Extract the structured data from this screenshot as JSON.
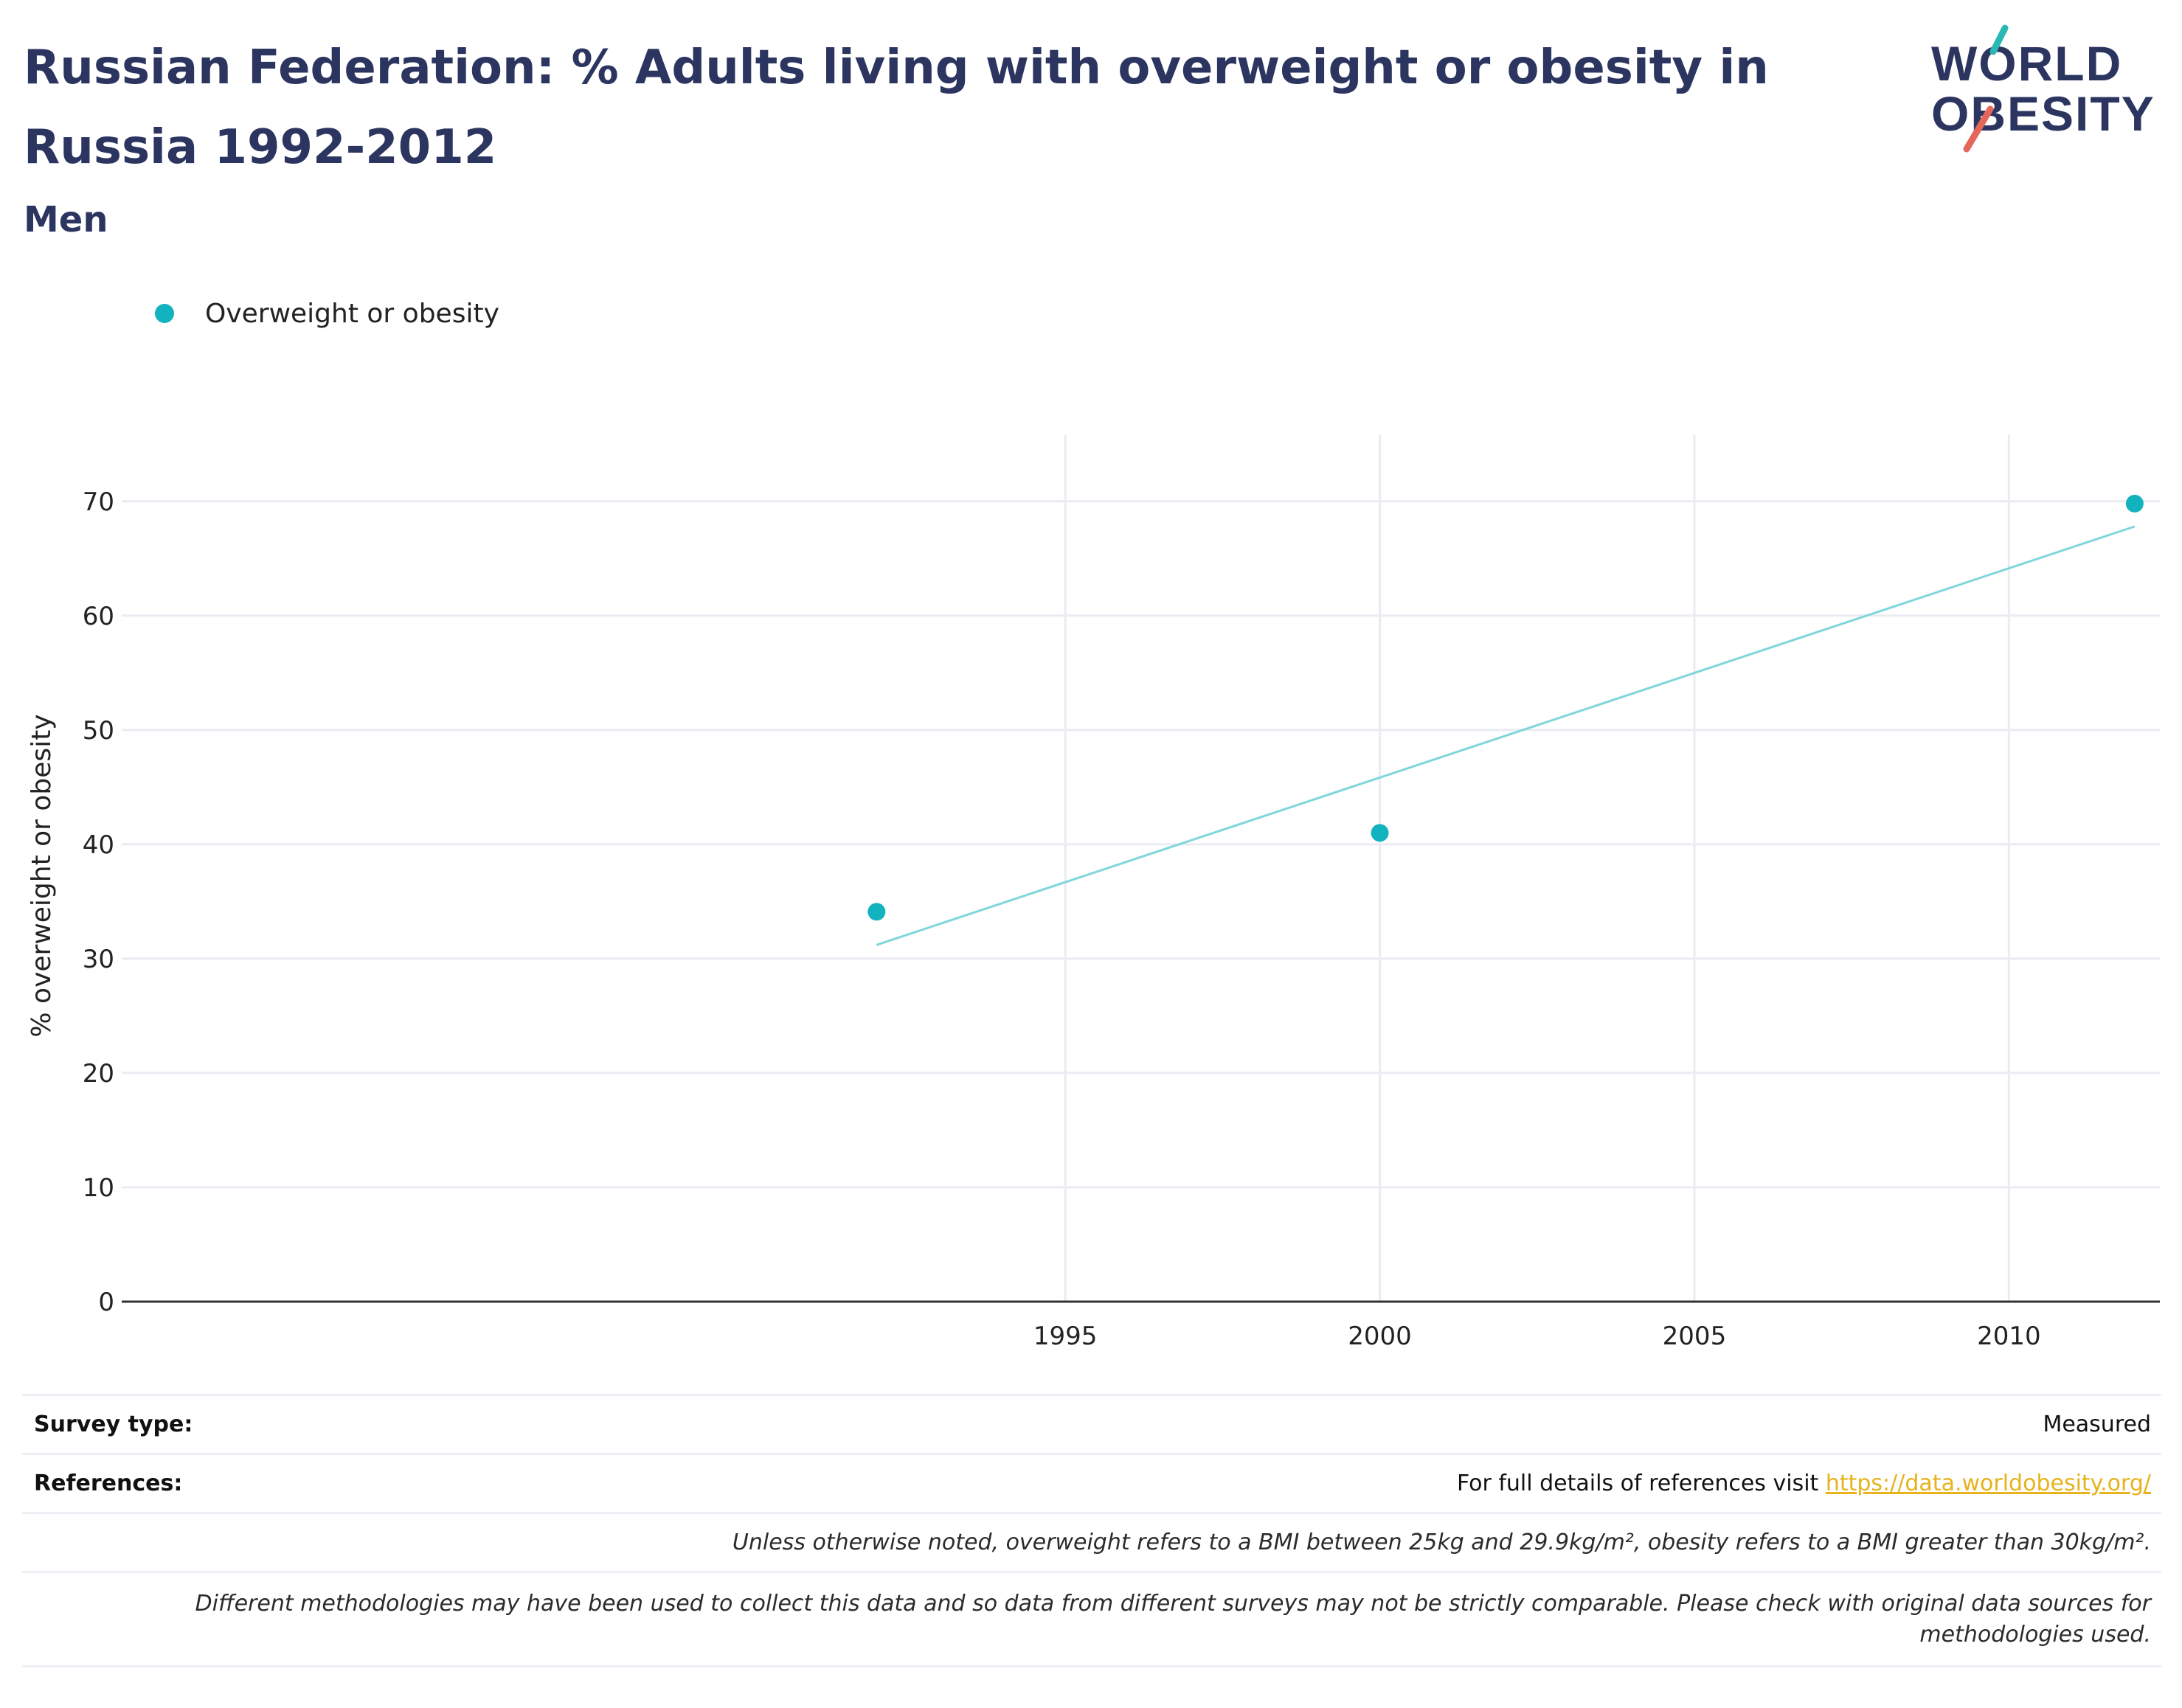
{
  "header": {
    "title": "Russian Federation: % Adults living with overweight or obesity in Russia 1992-2012",
    "subtitle": "Men"
  },
  "logo": {
    "line1": "WORLD",
    "line2": "OBESITY",
    "accent_teal": "#29b8b3",
    "accent_coral": "#e4685a"
  },
  "legend": {
    "label": "Overweight or obesity"
  },
  "colors": {
    "marker": "#12b3be",
    "trend": "#7fd6dc",
    "grid": "#ebebf2",
    "axis": "#333333",
    "title": "#2c3560"
  },
  "chart_data": {
    "type": "scatter",
    "title": "",
    "xlabel": "",
    "ylabel": "% overweight or obesity",
    "x_ticks": [
      1995,
      2000,
      2005,
      2010
    ],
    "y_ticks": [
      0,
      10,
      20,
      30,
      40,
      50,
      60,
      70
    ],
    "xlim": [
      1980.0,
      2012.4
    ],
    "ylim": [
      0,
      74.5
    ],
    "grid": true,
    "legend_position": "top-left",
    "series": [
      {
        "name": "Overweight or obesity",
        "x": [
          1992,
          2000,
          2012
        ],
        "y": [
          34.1,
          41.0,
          69.8
        ]
      }
    ],
    "trendline": {
      "x": [
        1992,
        2012
      ],
      "y": [
        31.2,
        67.8
      ]
    }
  },
  "footer": {
    "survey_label": "Survey type:",
    "survey_value": "Measured",
    "references_label": "References:",
    "references_text": "For full details of references visit ",
    "references_link": "https://data.worldobesity.org/",
    "note1": "Unless otherwise noted, overweight refers to a BMI between 25kg and 29.9kg/m², obesity refers to a BMI greater than 30kg/m².",
    "note2": "Different methodologies may have been used to collect this data and so data from different surveys may not be strictly comparable. Please check with original data sources for methodologies used."
  }
}
